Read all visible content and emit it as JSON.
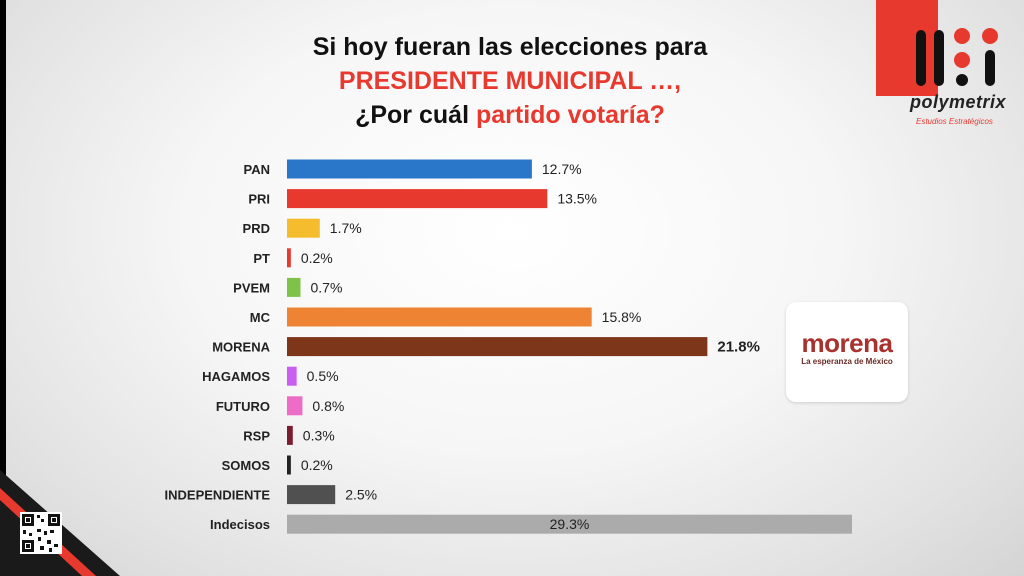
{
  "title": {
    "line1": "Si hoy fueran las elecciones para",
    "line2": "PRESIDENTE MUNICIPAL …,",
    "line3_prefix": "¿Por cuál ",
    "line3_highlight": "partido votaría?"
  },
  "brand": {
    "name": "polymetrix",
    "tagline": "Estudios Estratégicos"
  },
  "badge": {
    "name": "morena",
    "slogan": "La esperanza de México"
  },
  "colors": {
    "accent_red": "#e8392f"
  },
  "chart_data": {
    "type": "bar",
    "orientation": "horizontal",
    "categories": [
      "PAN",
      "PRI",
      "PRD",
      "PT",
      "PVEM",
      "MC",
      "MORENA",
      "HAGAMOS",
      "FUTURO",
      "RSP",
      "SOMOS",
      "INDEPENDIENTE",
      "Indecisos"
    ],
    "values": [
      12.7,
      13.5,
      1.7,
      0.2,
      0.7,
      15.8,
      21.8,
      0.5,
      0.8,
      0.3,
      0.2,
      2.5,
      29.3
    ],
    "labels": [
      "12.7%",
      "13.5%",
      "1.7%",
      "0.2%",
      "0.7%",
      "15.8%",
      "21.8%",
      "0.5%",
      "0.8%",
      "0.3%",
      "0.2%",
      "2.5%",
      "29.3%"
    ],
    "colors": [
      "#2a76c9",
      "#e8392f",
      "#f5bd2e",
      "#e8392f",
      "#7ec24a",
      "#ee8433",
      "#7e361a",
      "#c95ef0",
      "#ec6cc6",
      "#7a1d31",
      "#222222",
      "#505050",
      "#ababab"
    ],
    "highlight": "MORENA",
    "label_inside": "Indecisos",
    "xlim": [
      0,
      29.3
    ],
    "grid": false
  }
}
